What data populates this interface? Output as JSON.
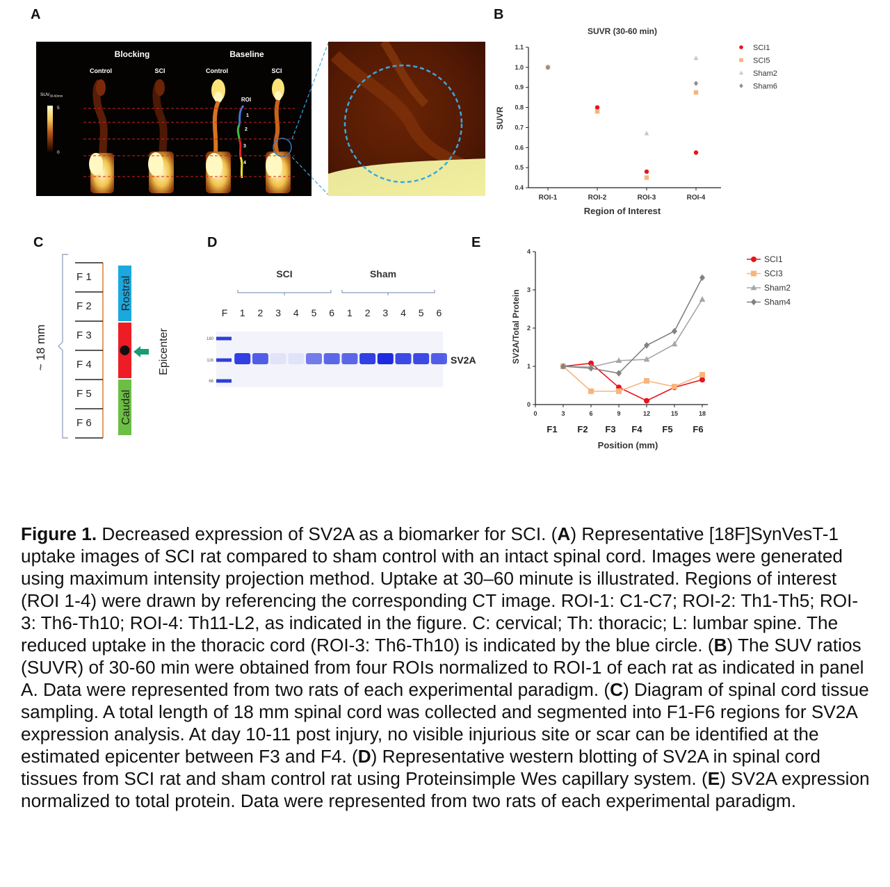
{
  "panels": {
    "a": {
      "letter": "A"
    },
    "b": {
      "letter": "B"
    },
    "c": {
      "letter": "C"
    },
    "d": {
      "letter": "D"
    },
    "e": {
      "letter": "E"
    }
  },
  "panel_a": {
    "group_labels": [
      "Blocking",
      "Baseline"
    ],
    "column_labels": [
      "Control",
      "SCI",
      "Control",
      "SCI"
    ],
    "colorbar_label": "SUV",
    "colorbar_sub": "30-60min",
    "colorbar_max": "5",
    "colorbar_min": "0",
    "roi_title": "ROI",
    "roi_numbers": [
      "1",
      "2",
      "3",
      "4"
    ]
  },
  "panel_c": {
    "segments": [
      "F 1",
      "F 2",
      "F 3",
      "F 4",
      "F 5",
      "F 6"
    ],
    "length_label": "~ 18 mm",
    "rostral": "Rostral",
    "caudal": "Caudal",
    "epicenter": "Epicenter",
    "colors": {
      "rostral": "#1ba8de",
      "epicenter": "#ee1c25",
      "caudal": "#6dbe45",
      "arrow": "#179b73"
    }
  },
  "panel_d": {
    "group_labels": [
      "SCI",
      "Sham"
    ],
    "lane_labels": [
      "F",
      "1",
      "2",
      "3",
      "4",
      "5",
      "6",
      "1",
      "2",
      "3",
      "4",
      "5",
      "6"
    ],
    "ladder_labels": [
      "180",
      "116",
      "66"
    ],
    "band_label": "SV2A",
    "band_intensity": [
      0,
      0.9,
      0.75,
      0.05,
      0.05,
      0.6,
      0.7,
      0.7,
      0.9,
      1.0,
      0.85,
      0.85,
      0.75
    ]
  },
  "caption": {
    "figure_label": "Figure 1.",
    "s1": " Decreased expression of SV2A as a biomarker for SCI.  (",
    "a": "A",
    "s2": ") Representative [18F]SynVesT-1 uptake images of SCI rat compared to sham control with an intact spinal cord. Images were generated using maximum intensity projection method. Uptake at 30–60 minute is illustrated. Regions of interest (ROI 1-4) were drawn by referencing the corresponding CT image. ROI-1: C1-C7; ROI-2: Th1-Th5; ROI-3: Th6-Th10; ROI-4: Th11-L2, as indicated in the figure. C: cervical; Th: thoracic; L: lumbar spine. The reduced uptake in the thoracic cord (ROI-3: Th6-Th10) is indicated by the blue circle. (",
    "b": "B",
    "s3": ") The SUV ratios (SUVR) of 30-60 min were obtained from four ROIs normalized to ROI-1 of each rat as indicated in panel A. Data were represented from two rats of each experimental paradigm. (",
    "c": "C",
    "s4": ") Diagram of spinal cord tissue sampling. A total length of 18 mm spinal cord was collected and segmented into F1-F6 regions for SV2A expression analysis. At day 10-11 post injury, no visible injurious site or scar can be identified at the estimated epicenter between F3 and F4. (",
    "d": "D",
    "s5": ") Representative western blotting of SV2A in spinal cord tissues from SCI rat and sham control rat using Proteinsimple Wes capillary system. (",
    "e": "E",
    "s6": ") SV2A expression normalized to total protein. Data were represented from two rats of each experimental paradigm."
  },
  "chart_data": [
    {
      "id": "B",
      "type": "scatter",
      "title": "SUVR (30-60 min)",
      "xlabel": "Region of Interest",
      "ylabel": "SUVR",
      "categories": [
        "ROI-1",
        "ROI-2",
        "ROI-3",
        "ROI-4"
      ],
      "ylim": [
        0.4,
        1.1
      ],
      "yticks": [
        "0.4",
        "0.5",
        "0.6",
        "0.7",
        "0.8",
        "0.9",
        "1.0",
        "1.1"
      ],
      "legend_position": "right",
      "series": [
        {
          "name": "SCI1",
          "color": "#e8141a",
          "marker": "circle",
          "values": [
            1.0,
            0.8,
            0.48,
            0.575
          ]
        },
        {
          "name": "SCI5",
          "color": "#f7b47c",
          "marker": "square",
          "values": [
            1.0,
            0.78,
            0.45,
            0.875
          ]
        },
        {
          "name": "Sham2",
          "color": "#c9c9c9",
          "marker": "triangle",
          "values": [
            1.0,
            null,
            0.67,
            1.045
          ]
        },
        {
          "name": "Sham6",
          "color": "#8f8f8f",
          "marker": "diamond",
          "values": [
            1.0,
            null,
            null,
            0.92
          ]
        }
      ]
    },
    {
      "id": "E",
      "type": "line",
      "xlabel": "Position (mm)",
      "ylabel": "SV2A/Total Protein",
      "x": [
        3,
        6,
        9,
        12,
        15,
        18
      ],
      "xticks": [
        "0",
        "3",
        "6",
        "9",
        "12",
        "15",
        "18"
      ],
      "xlim": [
        0,
        18
      ],
      "segment_labels": [
        "F1",
        "F2",
        "F3",
        "F4",
        "F5",
        "F6"
      ],
      "ylim": [
        0,
        4
      ],
      "yticks": [
        "0",
        "1",
        "2",
        "3",
        "4"
      ],
      "legend_position": "right",
      "series": [
        {
          "name": "SCI1",
          "color": "#e8141a",
          "marker": "circle",
          "values": [
            1.0,
            1.08,
            0.45,
            0.1,
            0.45,
            0.65
          ]
        },
        {
          "name": "SCI3",
          "color": "#f7b47c",
          "marker": "square",
          "values": [
            1.0,
            0.35,
            0.35,
            0.62,
            0.47,
            0.78
          ]
        },
        {
          "name": "Sham2",
          "color": "#a6a6a6",
          "marker": "triangle",
          "values": [
            1.0,
            0.98,
            1.15,
            1.18,
            1.58,
            2.75
          ]
        },
        {
          "name": "Sham4",
          "color": "#828282",
          "marker": "diamond",
          "values": [
            1.0,
            0.95,
            0.82,
            1.55,
            1.92,
            3.32
          ]
        }
      ]
    }
  ]
}
